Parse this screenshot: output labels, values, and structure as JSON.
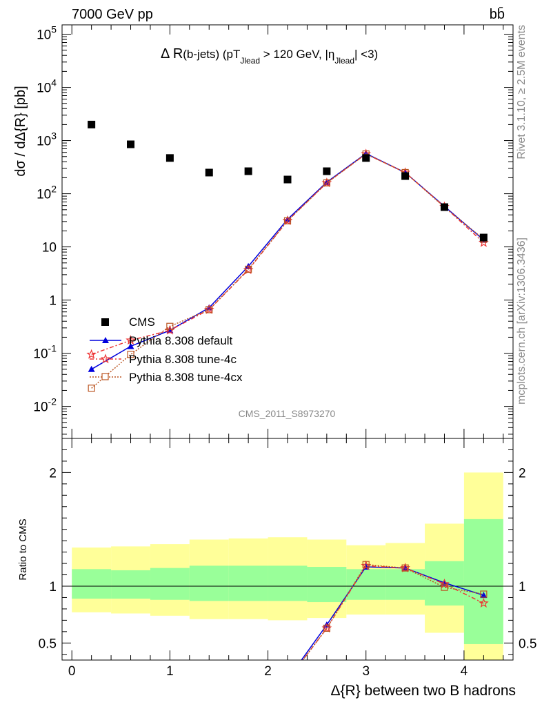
{
  "header": {
    "left": "7000 GeV pp",
    "right": "bb̄"
  },
  "side": {
    "rivet": "Rivet 3.1.10, ≥ 2.5M events",
    "mcplots": "mcplots.cern.ch [arXiv:1306.3436]"
  },
  "analysis_id": "CMS_2011_S8973270",
  "colors": {
    "cms": "#000000",
    "default": "#0000dd",
    "tune4c": "#ee3333",
    "tune4cx": "#bb5522",
    "band_inner": "#99ff99",
    "band_outer": "#ffff99"
  },
  "chart_data": [
    {
      "type": "scatter",
      "title": "Δ R(b-jets) (pT_Jlead > 120 GeV, |η_Jlead| <3)",
      "title_parts": {
        "a": "Δ R",
        "b": "(b-jets) (pT",
        "c": "Jlead",
        "d": " >  120 GeV, |η",
        "e": "Jlead",
        "f": "| <3)"
      },
      "xlabel": "Δ{R} between two B hadrons",
      "ylabel": "dσ / dΔ{R} [pb]",
      "yscale": "log",
      "xlim": [
        -0.1,
        4.5
      ],
      "ylim": [
        0.0025,
        150000
      ],
      "ytick_labels": [
        "10^-2",
        "10^-1",
        "1",
        "10",
        "10^2",
        "10^3",
        "10^4",
        "10^5"
      ],
      "x": [
        0.2,
        0.6,
        1.0,
        1.4,
        1.8,
        2.2,
        2.6,
        3.0,
        3.4,
        3.8,
        4.2
      ],
      "series": [
        {
          "name": "CMS",
          "values": [
            2000,
            850,
            470,
            250,
            265,
            185,
            265,
            470,
            215,
            56,
            15
          ]
        },
        {
          "name": "Pythia 8.308 default",
          "values": [
            0.05,
            0.135,
            0.27,
            0.72,
            4.3,
            33,
            165,
            570,
            250,
            58,
            13.5
          ]
        },
        {
          "name": "Pythia 8.308 tune-4c",
          "values": [
            0.095,
            0.175,
            0.27,
            0.66,
            3.7,
            31,
            160,
            560,
            250,
            57,
            12
          ]
        },
        {
          "name": "Pythia 8.308 tune-4cx",
          "values": [
            0.022,
            0.095,
            0.32,
            0.66,
            3.8,
            31,
            160,
            560,
            250,
            56,
            14
          ]
        }
      ],
      "legend_entries": [
        "CMS",
        "Pythia 8.308 default",
        "Pythia 8.308 tune-4c",
        "Pythia 8.308 tune-4cx"
      ]
    },
    {
      "type": "line",
      "ylabel": "Ratio to CMS",
      "xlim": [
        -0.1,
        4.5
      ],
      "ylim": [
        0.35,
        2.3
      ],
      "yticks": [
        0.5,
        1,
        2
      ],
      "ytick_labels": [
        "0.5",
        "1",
        "2"
      ],
      "xticks": [
        0,
        1,
        2,
        3,
        4
      ],
      "xtick_labels": [
        "0",
        "1",
        "2",
        "3",
        "4"
      ],
      "band_edges": [
        0,
        0.4,
        0.8,
        1.2,
        1.6,
        2.0,
        2.4,
        2.8,
        3.2,
        3.6,
        4.0,
        4.4
      ],
      "band_inner": [
        [
          0.89,
          1.15
        ],
        [
          0.89,
          1.14
        ],
        [
          0.88,
          1.16
        ],
        [
          0.87,
          1.18
        ],
        [
          0.87,
          1.18
        ],
        [
          0.87,
          1.18
        ],
        [
          0.86,
          1.17
        ],
        [
          0.88,
          1.15
        ],
        [
          0.88,
          1.15
        ],
        [
          0.83,
          1.22
        ],
        [
          0.49,
          1.59
        ]
      ],
      "band_outer": [
        [
          0.77,
          1.34
        ],
        [
          0.76,
          1.35
        ],
        [
          0.74,
          1.37
        ],
        [
          0.71,
          1.41
        ],
        [
          0.71,
          1.42
        ],
        [
          0.7,
          1.43
        ],
        [
          0.72,
          1.41
        ],
        [
          0.75,
          1.36
        ],
        [
          0.75,
          1.38
        ],
        [
          0.59,
          1.55
        ],
        [
          0.3,
          2.0
        ]
      ],
      "x": [
        2.2,
        2.6,
        3.0,
        3.4,
        3.8,
        4.2
      ],
      "series": [
        {
          "name": "Pythia 8.308 default",
          "values": [
            0.18,
            0.66,
            1.17,
            1.16,
            1.03,
            0.92
          ]
        },
        {
          "name": "Pythia 8.308 tune-4c",
          "values": [
            0.17,
            0.63,
            1.18,
            1.16,
            1.02,
            0.85
          ]
        },
        {
          "name": "Pythia 8.308 tune-4cx",
          "values": [
            0.17,
            0.63,
            1.19,
            1.16,
            0.99,
            0.93
          ]
        }
      ]
    }
  ]
}
